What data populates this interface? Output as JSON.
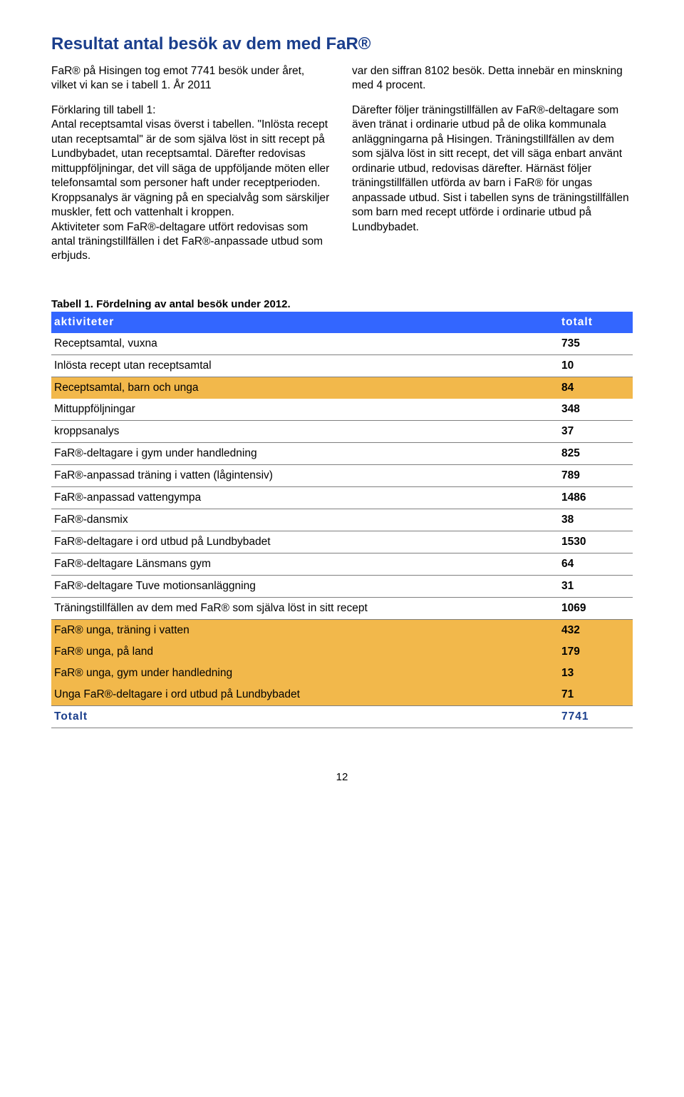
{
  "heading": "Resultat antal besök av dem med FaR®",
  "left_paragraphs": [
    "FaR® på Hisingen tog emot 7741 besök under året, vilket vi kan se i tabell 1. År 2011",
    "Förklaring till tabell 1:\nAntal receptsamtal visas överst i tabellen. \"Inlösta recept utan receptsamtal\" är de som själva löst in sitt recept på Lundbybadet, utan receptsamtal. Därefter redovisas mittuppföljningar, det vill säga de uppföljande möten eller telefonsamtal som personer haft under receptperioden.\nKroppsanalys är vägning på en specialvåg som särskiljer muskler, fett och vattenhalt i kroppen.\nAktiviteter som FaR®-deltagare utfört redovisas som antal träningstillfällen i det FaR®-anpassade utbud som erbjuds."
  ],
  "right_paragraphs": [
    "var den siffran 8102 besök. Detta innebär en minskning med 4 procent.",
    "Därefter följer träningstillfällen av FaR®-deltagare som även tränat i ordinarie utbud på de olika kommunala anläggningarna på Hisingen. Träningstillfällen av dem som själva löst in sitt recept, det vill säga enbart använt ordinarie utbud, redovisas därefter. Härnäst följer träningstillfällen utförda av barn i FaR® för ungas anpassade utbud. Sist i tabellen syns de träningstillfällen som barn med recept utförde i ordinarie utbud på Lundbybadet."
  ],
  "table_caption": "Tabell 1. Fördelning av antal besök under 2012.",
  "table": {
    "header_bg": "#3366ff",
    "header_fg": "#ffffff",
    "row_border": "#7f7f7f",
    "highlight_bg": "#f2b84b",
    "total_fg": "#1a3e8c",
    "columns": [
      "aktiviteter",
      "totalt"
    ],
    "rows": [
      {
        "label": "Receptsamtal, vuxna",
        "value": "735",
        "hl": false
      },
      {
        "label": "Inlösta recept utan receptsamtal",
        "value": "10",
        "hl": false
      },
      {
        "label": "Receptsamtal, barn och unga",
        "value": "84",
        "hl": true
      },
      {
        "label": "Mittuppföljningar",
        "value": "348",
        "hl": false
      },
      {
        "label": "kroppsanalys",
        "value": "37",
        "hl": false
      },
      {
        "label": "FaR®-deltagare i gym under handledning",
        "value": "825",
        "hl": false
      },
      {
        "label": "FaR®-anpassad träning i vatten (lågintensiv)",
        "value": "789",
        "hl": false
      },
      {
        "label": "FaR®-anpassad vattengympa",
        "value": "1486",
        "hl": false
      },
      {
        "label": "FaR®-dansmix",
        "value": "38",
        "hl": false
      },
      {
        "label": "FaR®-deltagare i ord utbud på Lundbybadet",
        "value": "1530",
        "hl": false
      },
      {
        "label": "FaR®-deltagare Länsmans gym",
        "value": "64",
        "hl": false
      },
      {
        "label": "FaR®-deltagare Tuve motionsanläggning",
        "value": "31",
        "hl": false
      },
      {
        "label": "Träningstillfällen av dem med FaR® som själva löst in sitt recept",
        "value": "1069",
        "hl": false
      },
      {
        "label": "FaR® unga, träning i vatten",
        "value": "432",
        "hl": true
      },
      {
        "label": "FaR® unga, på land",
        "value": "179",
        "hl": true
      },
      {
        "label": "FaR® unga, gym under handledning",
        "value": "13",
        "hl": true
      },
      {
        "label": "Unga FaR®-deltagare i ord utbud på Lundbybadet",
        "value": "71",
        "hl": true
      }
    ],
    "total": {
      "label": "Totalt",
      "value": "7741"
    }
  },
  "page_number": "12"
}
